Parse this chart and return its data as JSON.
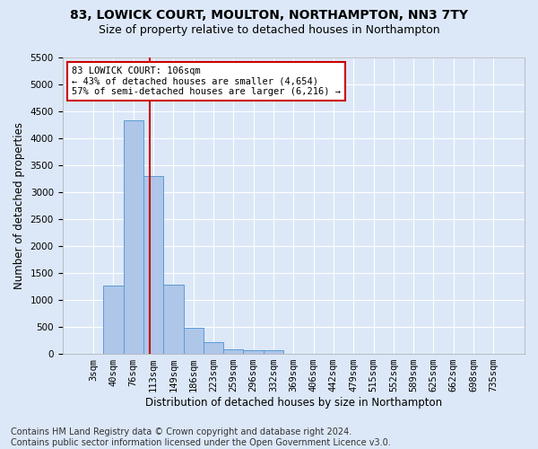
{
  "title1": "83, LOWICK COURT, MOULTON, NORTHAMPTON, NN3 7TY",
  "title2": "Size of property relative to detached houses in Northampton",
  "xlabel": "Distribution of detached houses by size in Northampton",
  "ylabel": "Number of detached properties",
  "footnote": "Contains HM Land Registry data © Crown copyright and database right 2024.\nContains public sector information licensed under the Open Government Licence v3.0.",
  "bar_labels": [
    "3sqm",
    "40sqm",
    "76sqm",
    "113sqm",
    "149sqm",
    "186sqm",
    "223sqm",
    "259sqm",
    "296sqm",
    "332sqm",
    "369sqm",
    "406sqm",
    "442sqm",
    "479sqm",
    "515sqm",
    "552sqm",
    "589sqm",
    "625sqm",
    "662sqm",
    "698sqm",
    "735sqm"
  ],
  "bar_values": [
    0,
    1260,
    4330,
    3300,
    1280,
    490,
    210,
    85,
    60,
    60,
    0,
    0,
    0,
    0,
    0,
    0,
    0,
    0,
    0,
    0,
    0
  ],
  "bar_color": "#aec6e8",
  "bar_edge_color": "#5b9bd5",
  "vline_x": 2.73,
  "vline_color": "#cc0000",
  "annotation_line1": "83 LOWICK COURT: 106sqm",
  "annotation_line2": "← 43% of detached houses are smaller (4,654)",
  "annotation_line3": "57% of semi-detached houses are larger (6,216) →",
  "annotation_box_color": "#ffffff",
  "annotation_box_edge": "#cc0000",
  "ylim": [
    0,
    5500
  ],
  "bg_color": "#dce8f8",
  "plot_bg_color": "#dce8f8",
  "grid_color": "#ffffff",
  "title1_fontsize": 10,
  "title2_fontsize": 9,
  "xlabel_fontsize": 8.5,
  "ylabel_fontsize": 8.5,
  "tick_fontsize": 7.5,
  "footnote_fontsize": 7
}
